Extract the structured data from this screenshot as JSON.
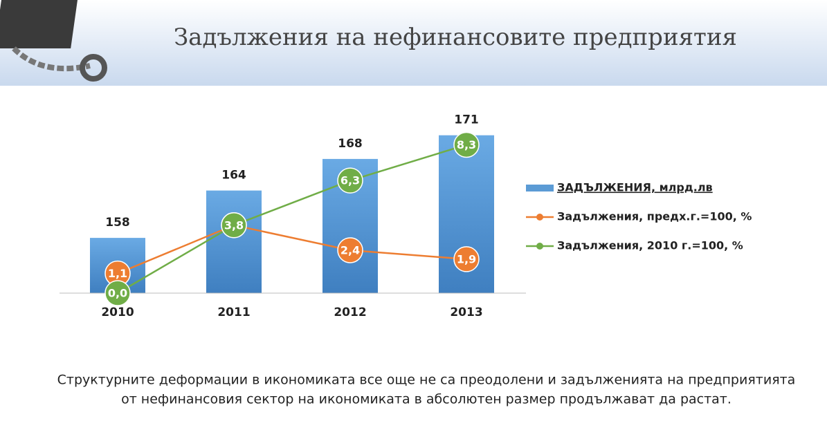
{
  "header": {
    "title": "Задължения на нефинансовите предприятия"
  },
  "chart_data": {
    "type": "bar",
    "categories": [
      "2010",
      "2011",
      "2012",
      "2013"
    ],
    "series": [
      {
        "name": "ЗАДЪЛЖЕНИЯ, млрд.лв",
        "type": "bar",
        "color": "#5b9bd5",
        "values": [
          158,
          164,
          168,
          171
        ]
      },
      {
        "name": "Задължения, предх.г.=100, %",
        "type": "line",
        "axis": "y2",
        "color": "#ed7d31",
        "values": [
          1.1,
          3.8,
          2.4,
          1.9
        ],
        "value_labels": [
          "1,1",
          "3,8",
          "2,4",
          "1,9"
        ]
      },
      {
        "name": "Задължения, 2010 г.=100, %",
        "type": "line",
        "axis": "y2",
        "color": "#70ad47",
        "values": [
          0.0,
          3.8,
          6.3,
          8.3
        ],
        "value_labels": [
          "0,0",
          "3,8",
          "6,3",
          "8,3"
        ]
      }
    ],
    "ylim": [
      151,
      175
    ],
    "y2lim": [
      0,
      10.6
    ],
    "legend": "right"
  },
  "footer": {
    "lines": [
      "Структурните деформации в икономиката все още не са преодолени и задълженията на предприятията",
      "от нефинансовия сектор на икономиката в абсолютен размер продължават да растат."
    ]
  }
}
